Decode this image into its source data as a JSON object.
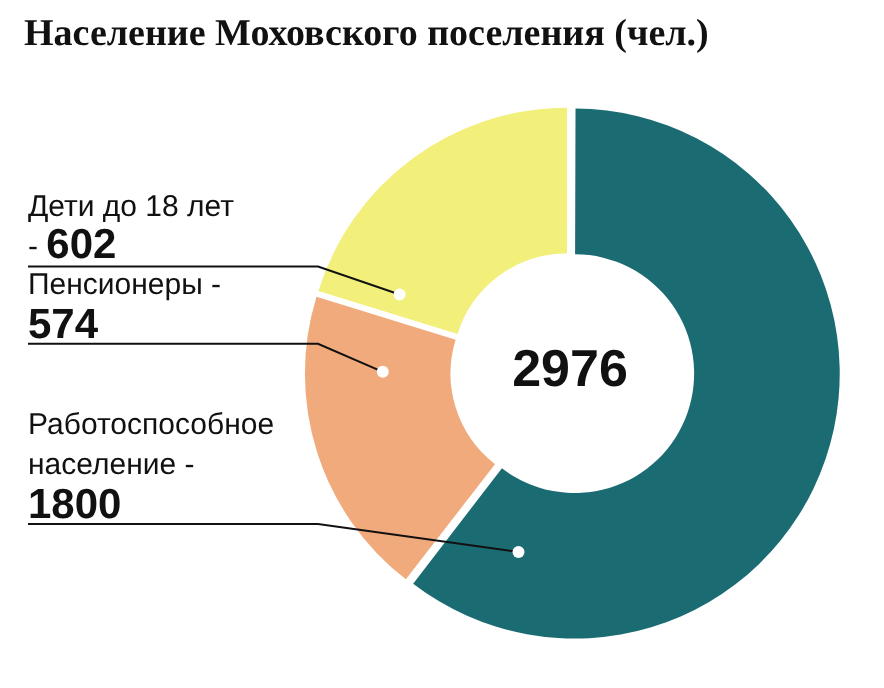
{
  "chart_data": {
    "type": "donut",
    "title": "Население Моховского поселения (чел.)",
    "categories": [
      "Работоспособное население -",
      "Пенсионеры -",
      "Дети до 18 лет -"
    ],
    "values": [
      1800,
      574,
      602
    ],
    "colors": [
      "#1b6b73",
      "#f0aa7c",
      "#f2ef7a"
    ],
    "data_labels": true,
    "annotations": [
      "2976"
    ]
  }
}
